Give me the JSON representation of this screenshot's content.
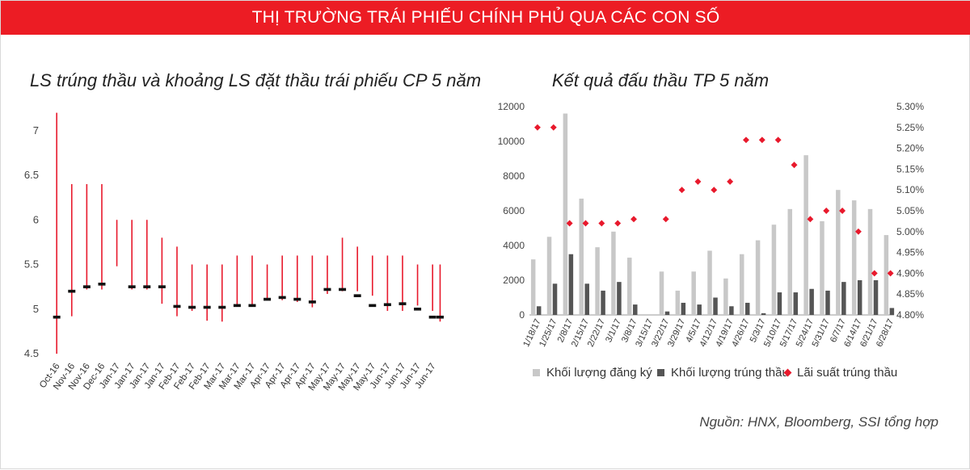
{
  "header": {
    "title": "THỊ TRƯỜNG TRÁI PHIẾU CHÍNH PHỦ QUA CÁC CON SỐ"
  },
  "source": "Nguồn: HNX, Bloomberg, SSI tổng hợp",
  "colors": {
    "banner": "#ec1c24",
    "range_line": "#e8192c",
    "winning_mark": "#111111",
    "registered_bar": "#c8c8c8",
    "winning_bar": "#555555",
    "rate_marker": "#e8192c"
  },
  "chart_data": [
    {
      "type": "bar",
      "title": "LS trúng thầu và khoảng LS đặt thầu trái phiếu CP 5 năm",
      "xlabel": "",
      "ylabel": "",
      "ylim": [
        4.5,
        7.4
      ],
      "yticks": [
        4.5,
        5,
        5.5,
        6,
        6.5,
        7
      ],
      "grid": false,
      "categories": [
        "Oct-16",
        "Nov-16",
        "Nov-16",
        "Dec-16",
        "Jan-17",
        "Jan-17",
        "Jan-17",
        "Jan-17",
        "Feb-17",
        "Feb-17",
        "Feb-17",
        "Mar-17",
        "Mar-17",
        "Mar-17",
        "Apr-17",
        "Apr-17",
        "Apr-17",
        "Apr-17",
        "May-17",
        "May-17",
        "May-17",
        "May-17",
        "Jun-17",
        "Jun-17",
        "Jun-17",
        "Jun-17"
      ],
      "series": [
        {
          "name": "",
          "role": "bid_low",
          "values": [
            4.5,
            4.92,
            5.22,
            5.22,
            5.48,
            5.22,
            5.22,
            5.06,
            4.92,
            4.98,
            4.87,
            4.86,
            5.03,
            5.03,
            5.1,
            5.1,
            5.08,
            5.02,
            5.17,
            5.2,
            5.2,
            5.15,
            4.98,
            4.98,
            5.04,
            4.98
          ]
        },
        {
          "name": "",
          "role": "bid_high",
          "values": [
            7.2,
            6.4,
            6.4,
            6.4,
            6.0,
            6.0,
            6.0,
            5.8,
            5.7,
            5.5,
            5.5,
            5.5,
            5.6,
            5.6,
            5.5,
            5.6,
            5.6,
            5.6,
            5.6,
            5.8,
            5.7,
            5.6,
            5.6,
            5.6,
            5.5,
            5.5
          ]
        },
        {
          "name": "",
          "role": "winning_rate",
          "values": [
            4.91,
            5.2,
            5.25,
            5.28,
            null,
            5.25,
            5.25,
            5.25,
            5.03,
            5.02,
            5.02,
            5.02,
            5.04,
            5.04,
            5.11,
            5.13,
            5.11,
            5.08,
            5.22,
            5.22,
            5.15,
            5.04,
            5.05,
            5.06,
            5.0,
            4.91
          ]
        }
      ],
      "extra": {
        "last_low": 4.86,
        "last_high": 5.41,
        "last_high_2": 5.5,
        "last_win": 4.91
      }
    },
    {
      "type": "bar",
      "title": "Kết quả đấu thầu TP 5 năm",
      "xlabel": "",
      "ylabel": "",
      "ylim": [
        0,
        12000
      ],
      "yticks": [
        0,
        2000,
        4000,
        6000,
        8000,
        10000,
        12000
      ],
      "y2lim": [
        4.8,
        5.3
      ],
      "y2ticks": [
        "4.80%",
        "4.85%",
        "4.90%",
        "4.95%",
        "5.00%",
        "5.05%",
        "5.10%",
        "5.15%",
        "5.20%",
        "5.25%",
        "5.30%"
      ],
      "grid": false,
      "categories": [
        "1/18/17",
        "1/25/17",
        "2/8/17",
        "2/15/17",
        "2/22/17",
        "3/1/17",
        "3/8/17",
        "3/15/17",
        "3/22/17",
        "3/29/17",
        "4/5/17",
        "4/12/17",
        "4/19/17",
        "4/26/17",
        "5/3/17",
        "5/10/17",
        "5/17/17",
        "5/24/17",
        "5/31/17",
        "6/7/17",
        "6/14/17",
        "6/21/17",
        "6/28/17"
      ],
      "series": [
        {
          "name": "Khối lượng đăng ký",
          "axis": "left",
          "values": [
            3200,
            4500,
            11600,
            6700,
            3900,
            4800,
            3300,
            0,
            2500,
            1400,
            2500,
            3700,
            2100,
            3500,
            4300,
            5200,
            6100,
            9200,
            5400,
            7200,
            6600,
            6100,
            4600
          ]
        },
        {
          "name": "Khối lượng trúng thầu",
          "axis": "left",
          "values": [
            500,
            1800,
            3500,
            1800,
            1400,
            1900,
            600,
            0,
            200,
            700,
            600,
            1000,
            500,
            700,
            100,
            1300,
            1300,
            1500,
            1400,
            1900,
            2000,
            2000,
            400
          ]
        },
        {
          "name": "Lãi suất trúng thầu",
          "axis": "right",
          "values": [
            5.25,
            5.25,
            5.02,
            5.02,
            5.02,
            5.02,
            5.03,
            null,
            5.03,
            5.1,
            5.12,
            5.1,
            5.12,
            5.22,
            5.22,
            5.22,
            5.16,
            5.03,
            5.05,
            5.05,
            5.0,
            4.9,
            4.9
          ]
        }
      ]
    }
  ]
}
